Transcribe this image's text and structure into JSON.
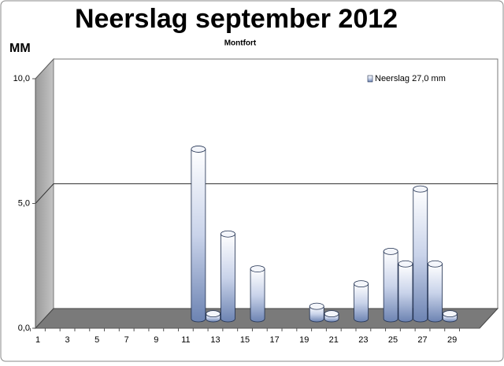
{
  "chart_data": {
    "type": "bar",
    "title": "Neerslag september 2012",
    "subtitle": "Montfort",
    "y_label": "MM",
    "categories": [
      "1",
      null,
      "3",
      null,
      "5",
      null,
      "7",
      null,
      "9",
      null,
      "11",
      null,
      "13",
      null,
      "15",
      null,
      "17",
      null,
      "19",
      null,
      "21",
      null,
      "23",
      null,
      "25",
      null,
      "27",
      null,
      "29",
      null
    ],
    "series": [
      {
        "name": "Neerslag 27,0 mm",
        "color": "#8fa3cc",
        "values": [
          0,
          0,
          0,
          0,
          0,
          0,
          0,
          0,
          0,
          0,
          6.8,
          0.2,
          3.4,
          0,
          2.0,
          0,
          0,
          0,
          0.5,
          0.2,
          0,
          1.4,
          0,
          2.7,
          2.2,
          5.2,
          2.2,
          0.2,
          0,
          0
        ]
      }
    ],
    "ylim": [
      0,
      10
    ],
    "yticks": [
      {
        "value": 0,
        "label": "0,0"
      },
      {
        "value": 5,
        "label": "5,0"
      },
      {
        "value": 10,
        "label": "10,0"
      }
    ],
    "grid": true,
    "legend": "top-right"
  }
}
